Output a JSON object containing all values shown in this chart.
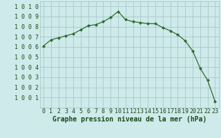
{
  "x": [
    0,
    1,
    2,
    3,
    4,
    5,
    6,
    7,
    8,
    9,
    10,
    11,
    12,
    13,
    14,
    15,
    16,
    17,
    18,
    19,
    20,
    21,
    22,
    23
  ],
  "y": [
    1006.1,
    1006.7,
    1006.9,
    1007.1,
    1007.3,
    1007.7,
    1008.1,
    1008.2,
    1008.5,
    1008.9,
    1009.5,
    1008.7,
    1008.5,
    1008.4,
    1008.3,
    1008.3,
    1007.9,
    1007.6,
    1007.2,
    1006.6,
    1005.6,
    1003.9,
    1002.7,
    1000.6
  ],
  "line_color": "#2d6a2d",
  "marker": "D",
  "marker_size": 2.2,
  "bg_color": "#ceeaea",
  "grid_color": "#aac8c8",
  "xlabel": "Graphe pression niveau de la mer (hPa)",
  "xlabel_color": "#1a4a1a",
  "xlabel_fontsize": 7.0,
  "tick_color": "#1a4a1a",
  "tick_fontsize": 6.0,
  "ylim": [
    1000.0,
    1010.5
  ],
  "xlim": [
    -0.5,
    23.5
  ],
  "yticks": [
    1001,
    1002,
    1003,
    1004,
    1005,
    1006,
    1007,
    1008,
    1009,
    1010
  ],
  "xticks": [
    0,
    1,
    2,
    3,
    4,
    5,
    6,
    7,
    8,
    9,
    10,
    11,
    12,
    13,
    14,
    15,
    16,
    17,
    18,
    19,
    20,
    21,
    22,
    23
  ]
}
